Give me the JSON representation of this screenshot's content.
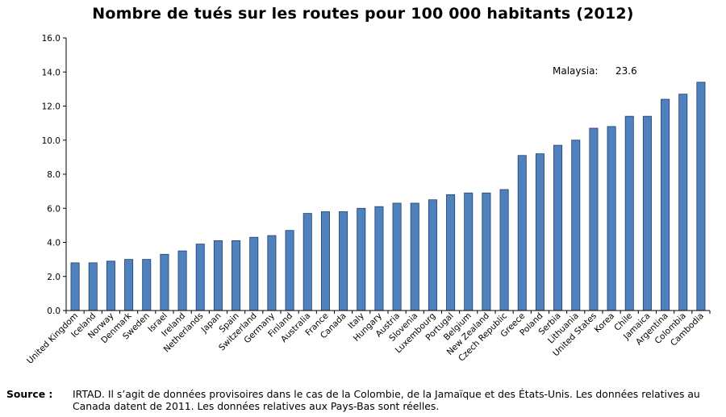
{
  "chart_data": {
    "type": "bar",
    "title": "Nombre de tués sur les routes pour 100 000 habitants (2012)",
    "categories": [
      "United Kingdom",
      "Iceland",
      "Norway",
      "Denmark",
      "Sweden",
      "Israel",
      "Ireland",
      "Netherlands",
      "Japan",
      "Spain",
      "Switzerland",
      "Germany",
      "Finland",
      "Australia",
      "France",
      "Canada",
      "Italy",
      "Hungary",
      "Austria",
      "Slovenia",
      "Luxembourg",
      "Portugal",
      "Belgium",
      "New Zealand",
      "Czech Republic",
      "Greece",
      "Poland",
      "Serbia",
      "Lithuania",
      "United States",
      "Korea",
      "Chile",
      "Jamaica",
      "Argentina",
      "Colombia",
      "Cambodia"
    ],
    "values": [
      2.8,
      2.8,
      2.9,
      3.0,
      3.0,
      3.3,
      3.5,
      3.9,
      4.1,
      4.1,
      4.3,
      4.4,
      4.7,
      5.7,
      5.8,
      5.8,
      6.0,
      6.1,
      6.3,
      6.3,
      6.5,
      6.8,
      6.9,
      6.9,
      7.1,
      9.1,
      9.2,
      9.7,
      10.0,
      10.7,
      10.8,
      11.4,
      11.4,
      12.4,
      12.7,
      13.4
    ],
    "ylim": [
      0,
      16
    ],
    "yticks": [
      "0.0",
      "2.0",
      "4.0",
      "6.0",
      "8.0",
      "10.0",
      "12.0",
      "14.0",
      "16.0"
    ],
    "xlabel": "",
    "ylabel": "",
    "grid": false,
    "bar_color": "#4f81bd",
    "bar_edge_color": "#1f3f6e",
    "annotation": {
      "label": "Malaysia:",
      "value": "23.6"
    }
  },
  "source": {
    "label": "Source :",
    "text": "IRTAD. Il s’agit de données provisoires dans le cas de la Colombie, de la Jamaïque et des États-Unis. Les données relatives au Canada datent de 2011. Les données relatives aux Pays-Bas sont réelles."
  }
}
